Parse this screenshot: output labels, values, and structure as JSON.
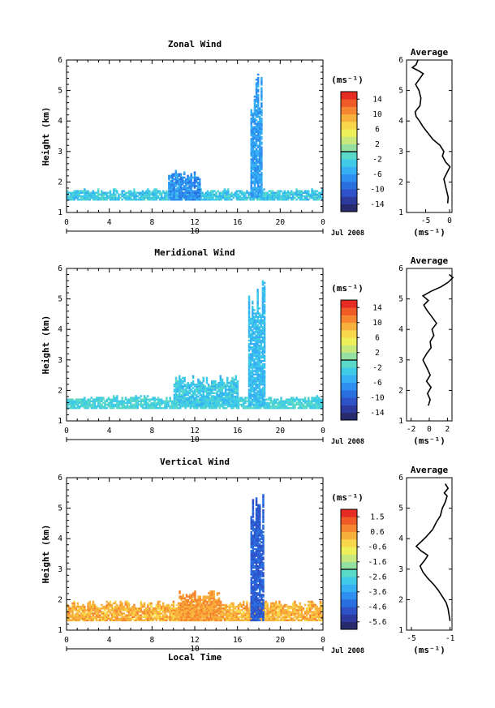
{
  "chart_data": [
    {
      "type": "heatmap",
      "title": "Zonal Wind",
      "ylabel": "Height (km)",
      "xlabel": "",
      "x_ticks": [
        "0",
        "4",
        "8",
        "12",
        "16",
        "20",
        "0"
      ],
      "xlim": [
        0,
        24
      ],
      "y_ticks": [
        "1",
        "2",
        "3",
        "4",
        "5",
        "6"
      ],
      "ylim": [
        1,
        6
      ],
      "day_label": "10",
      "date_label": "Jul 2008",
      "colorbar": {
        "unit_label": "(ms⁻¹)",
        "tick_labels": [
          "14",
          "10",
          "6",
          "2",
          "-2",
          "-6",
          "-10",
          "-14"
        ],
        "range": [
          -16,
          16
        ],
        "colors": [
          "#272a6c",
          "#2b3a9c",
          "#2f52c8",
          "#2a6fe0",
          "#2e8ff0",
          "#36b0f2",
          "#3fcbe8",
          "#5ad8c8",
          "#93e0a0",
          "#c6e87c",
          "#eef05a",
          "#f8d84a",
          "#f8b03c",
          "#f6862f",
          "#f05a26",
          "#e62c22"
        ]
      },
      "data_regions": [
        {
          "desc": "low cloud band",
          "x_range": [
            0,
            24
          ],
          "y_range": [
            1.4,
            1.75
          ],
          "value": -3
        },
        {
          "desc": "tall column",
          "x_range": [
            17.2,
            18.2
          ],
          "y_range": [
            1.5,
            5.7
          ],
          "value": -6
        },
        {
          "desc": "midday bump",
          "x_range": [
            9.5,
            12.5
          ],
          "y_range": [
            1.4,
            2.4
          ],
          "value": -7
        }
      ],
      "average_profile": {
        "title": "Average",
        "xlabel": "(ms⁻¹)",
        "x_ticks": [
          "-5",
          "0"
        ],
        "xlim": [
          -9,
          0.5
        ],
        "ylim": [
          1,
          6
        ],
        "y_ticks": [
          "1",
          "2",
          "3",
          "4",
          "5",
          "6"
        ],
        "points": [
          [
            -0.4,
            1.3
          ],
          [
            -0.3,
            1.5
          ],
          [
            -0.6,
            1.7
          ],
          [
            -0.9,
            1.9
          ],
          [
            -1.2,
            2.1
          ],
          [
            -0.4,
            2.35
          ],
          [
            0.1,
            2.5
          ],
          [
            -0.8,
            2.65
          ],
          [
            -1.5,
            2.85
          ],
          [
            -1.2,
            3.0
          ],
          [
            -2.0,
            3.2
          ],
          [
            -3.5,
            3.4
          ],
          [
            -4.5,
            3.6
          ],
          [
            -5.5,
            3.8
          ],
          [
            -6.3,
            4.0
          ],
          [
            -7.0,
            4.15
          ],
          [
            -7.2,
            4.3
          ],
          [
            -6.2,
            4.5
          ],
          [
            -6.0,
            4.75
          ],
          [
            -6.4,
            5.0
          ],
          [
            -7.1,
            5.2
          ],
          [
            -6.2,
            5.4
          ],
          [
            -5.5,
            5.55
          ],
          [
            -6.5,
            5.65
          ],
          [
            -7.8,
            5.75
          ],
          [
            -7.0,
            5.85
          ],
          [
            -6.6,
            6.0
          ]
        ]
      }
    },
    {
      "type": "heatmap",
      "title": "Meridional Wind",
      "ylabel": "Height (km)",
      "xlabel": "",
      "x_ticks": [
        "0",
        "4",
        "8",
        "12",
        "16",
        "20",
        "0"
      ],
      "xlim": [
        0,
        24
      ],
      "y_ticks": [
        "1",
        "2",
        "3",
        "4",
        "5",
        "6"
      ],
      "ylim": [
        1,
        6
      ],
      "day_label": "10",
      "date_label": "Jul 2008",
      "colorbar": {
        "unit_label": "(ms⁻¹)",
        "tick_labels": [
          "14",
          "10",
          "6",
          "2",
          "-2",
          "-6",
          "-10",
          "-14"
        ],
        "range": [
          -16,
          16
        ],
        "colors": [
          "#272a6c",
          "#2b3a9c",
          "#2f52c8",
          "#2a6fe0",
          "#2e8ff0",
          "#36b0f2",
          "#3fcbe8",
          "#5ad8c8",
          "#93e0a0",
          "#c6e87c",
          "#eef05a",
          "#f8d84a",
          "#f8b03c",
          "#f6862f",
          "#f05a26",
          "#e62c22"
        ]
      },
      "data_regions": [
        {
          "desc": "low band",
          "x_range": [
            0,
            24
          ],
          "y_range": [
            1.4,
            1.8
          ],
          "value": -2
        },
        {
          "desc": "tall column",
          "x_range": [
            17.0,
            18.6
          ],
          "y_range": [
            1.5,
            5.8
          ],
          "value": -4
        },
        {
          "desc": "afternoon bump",
          "x_range": [
            10.0,
            16.0
          ],
          "y_range": [
            1.5,
            2.5
          ],
          "value": -3
        }
      ],
      "average_profile": {
        "title": "Average",
        "xlabel": "(ms⁻¹)",
        "x_ticks": [
          "-2",
          "0",
          "2"
        ],
        "xlim": [
          -2.5,
          2.5
        ],
        "ylim": [
          1,
          6
        ],
        "y_ticks": [
          "1",
          "2",
          "3",
          "4",
          "5",
          "6"
        ],
        "points": [
          [
            -0.1,
            1.5
          ],
          [
            0.1,
            1.7
          ],
          [
            -0.2,
            1.9
          ],
          [
            0.2,
            2.1
          ],
          [
            -0.3,
            2.3
          ],
          [
            0.1,
            2.5
          ],
          [
            -0.2,
            2.7
          ],
          [
            -0.7,
            3.0
          ],
          [
            -0.3,
            3.2
          ],
          [
            0.2,
            3.4
          ],
          [
            0.1,
            3.6
          ],
          [
            0.5,
            3.8
          ],
          [
            0.3,
            4.0
          ],
          [
            0.8,
            4.2
          ],
          [
            0.2,
            4.45
          ],
          [
            -0.3,
            4.65
          ],
          [
            -0.6,
            4.8
          ],
          [
            -0.1,
            4.95
          ],
          [
            -0.7,
            5.1
          ],
          [
            0.2,
            5.25
          ],
          [
            1.3,
            5.4
          ],
          [
            2.1,
            5.55
          ],
          [
            2.6,
            5.7
          ],
          [
            2.2,
            5.8
          ]
        ]
      }
    },
    {
      "type": "heatmap",
      "title": "Vertical Wind",
      "ylabel": "Height (km)",
      "xlabel": "Local Time",
      "x_ticks": [
        "0",
        "4",
        "8",
        "12",
        "16",
        "20",
        "0"
      ],
      "xlim": [
        0,
        24
      ],
      "y_ticks": [
        "1",
        "2",
        "3",
        "4",
        "5",
        "6"
      ],
      "ylim": [
        1,
        6
      ],
      "day_label": "10",
      "date_label": "Jul 2008",
      "colorbar": {
        "unit_label": "(ms⁻¹)",
        "tick_labels": [
          "1.5",
          "0.6",
          "-0.6",
          "-1.6",
          "-2.6",
          "-3.6",
          "-4.6",
          "-5.6"
        ],
        "range": [
          -6,
          2
        ],
        "colors": [
          "#272a6c",
          "#2b3a9c",
          "#2f52c8",
          "#2a6fe0",
          "#2e8ff0",
          "#36b0f2",
          "#3fcbe8",
          "#5ad8c8",
          "#93e0a0",
          "#c6e87c",
          "#eef05a",
          "#f8d84a",
          "#f8b03c",
          "#f6862f",
          "#f05a26",
          "#e62c22"
        ]
      },
      "data_regions": [
        {
          "desc": "low band",
          "x_range": [
            0,
            24
          ],
          "y_range": [
            1.3,
            1.95
          ],
          "value": 0.2
        },
        {
          "desc": "downdraft column",
          "x_range": [
            17.2,
            18.4
          ],
          "y_range": [
            1.3,
            5.6
          ],
          "value": -4.5
        },
        {
          "desc": "midday bump",
          "x_range": [
            10.5,
            14.5
          ],
          "y_range": [
            1.3,
            2.3
          ],
          "value": 0.5
        }
      ],
      "average_profile": {
        "title": "Average",
        "xlabel": "(ms⁻¹)",
        "x_ticks": [
          "-5",
          "-1"
        ],
        "xlim": [
          -5.5,
          -0.8
        ],
        "ylim": [
          1,
          6
        ],
        "y_ticks": [
          "1",
          "2",
          "3",
          "4",
          "5",
          "6"
        ],
        "points": [
          [
            -1.0,
            1.3
          ],
          [
            -1.1,
            1.5
          ],
          [
            -1.2,
            1.7
          ],
          [
            -1.4,
            1.9
          ],
          [
            -1.8,
            2.1
          ],
          [
            -2.2,
            2.3
          ],
          [
            -2.7,
            2.5
          ],
          [
            -3.3,
            2.7
          ],
          [
            -3.8,
            2.9
          ],
          [
            -4.1,
            3.1
          ],
          [
            -3.6,
            3.3
          ],
          [
            -3.3,
            3.45
          ],
          [
            -4.0,
            3.6
          ],
          [
            -4.5,
            3.75
          ],
          [
            -4.0,
            3.9
          ],
          [
            -3.5,
            4.05
          ],
          [
            -2.8,
            4.3
          ],
          [
            -2.4,
            4.55
          ],
          [
            -2.0,
            4.75
          ],
          [
            -1.8,
            5.0
          ],
          [
            -1.5,
            5.2
          ],
          [
            -1.3,
            5.4
          ],
          [
            -1.6,
            5.5
          ],
          [
            -1.2,
            5.65
          ],
          [
            -1.5,
            5.8
          ]
        ]
      }
    }
  ]
}
